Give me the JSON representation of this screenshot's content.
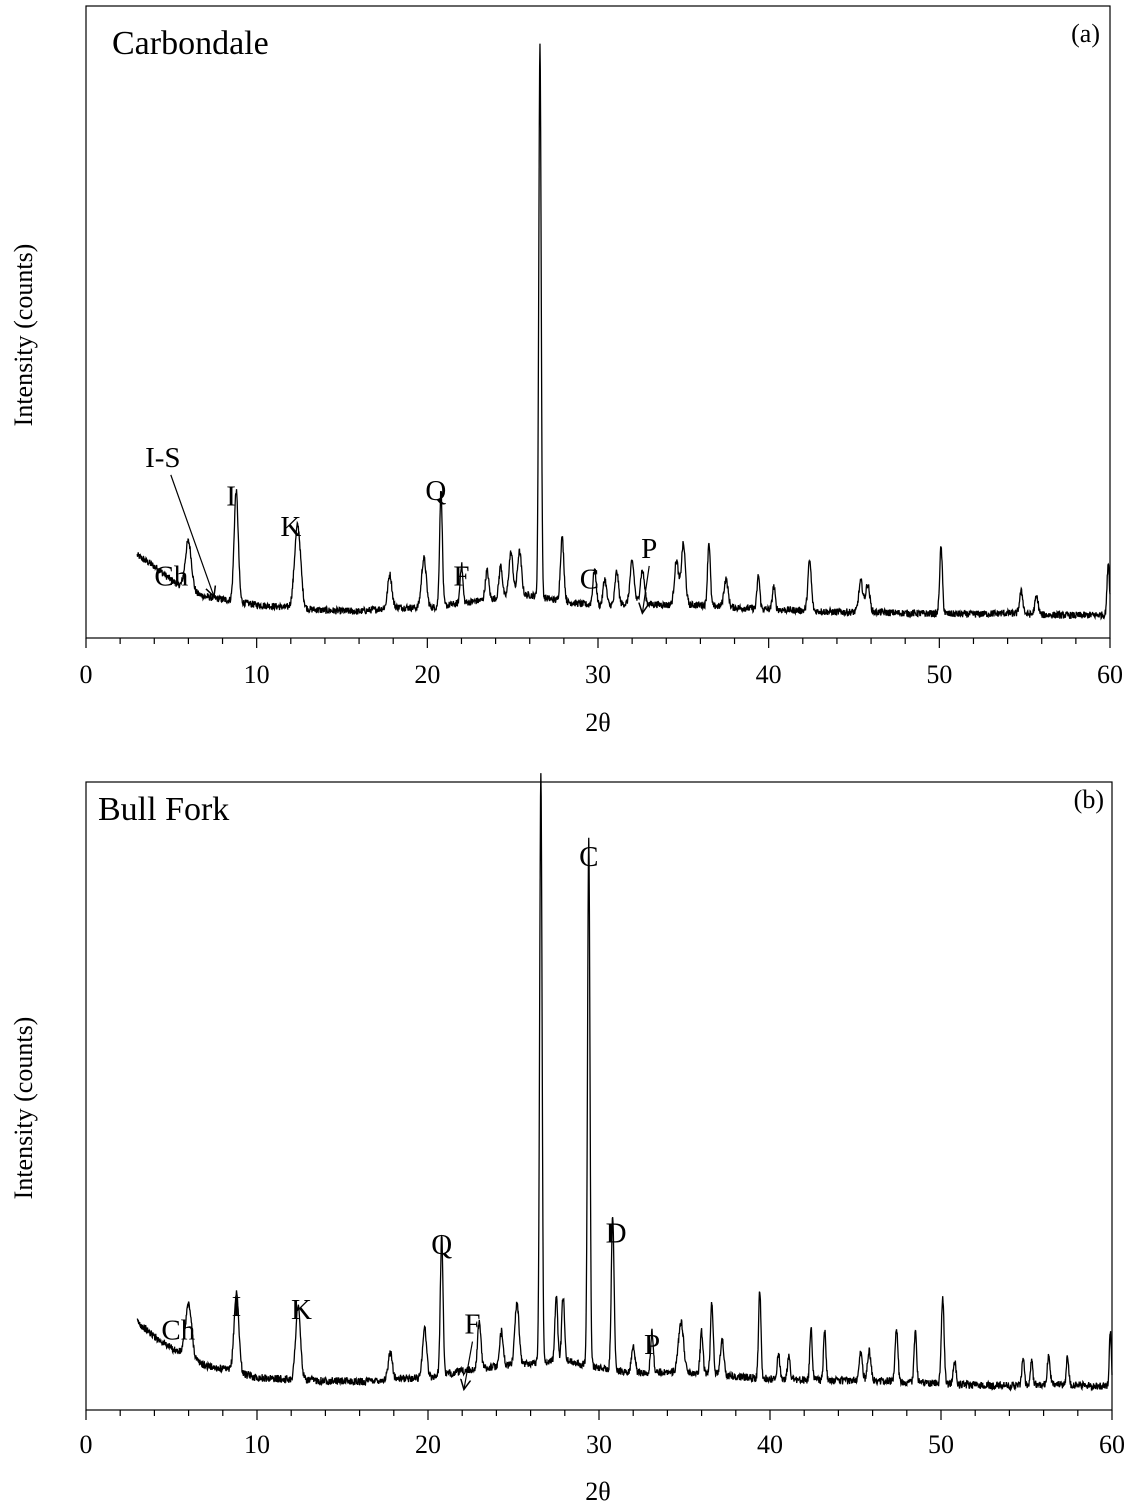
{
  "chart_data": [
    {
      "type": "line",
      "title": "Carbondale",
      "panel_label": "(a)",
      "xlabel": "2θ",
      "ylabel": "Intensity (counts)",
      "xlim": [
        0,
        60
      ],
      "x_ticks": [
        "0",
        "10",
        "20",
        "30",
        "40",
        "50",
        "60"
      ],
      "ylim": [
        0,
        100
      ],
      "y_ticks": [],
      "grid": false,
      "line_color": "#000000",
      "baseline": 3,
      "background": [
        [
          3,
          12
        ],
        [
          4,
          10
        ],
        [
          5,
          7.5
        ],
        [
          6,
          5.5
        ],
        [
          7,
          4.5
        ],
        [
          8,
          4
        ],
        [
          10,
          3
        ],
        [
          12,
          2.5
        ],
        [
          14,
          2
        ],
        [
          16,
          1.8
        ],
        [
          18,
          2.6
        ],
        [
          20,
          2.4
        ],
        [
          22,
          3.3
        ],
        [
          24,
          4.2
        ],
        [
          26,
          4.8
        ],
        [
          28,
          3.6
        ],
        [
          30,
          2.8
        ],
        [
          32,
          3.3
        ],
        [
          34,
          3
        ],
        [
          36,
          3
        ],
        [
          38,
          2.5
        ],
        [
          40,
          2.2
        ],
        [
          42,
          2
        ],
        [
          44,
          1.7
        ],
        [
          46,
          1.7
        ],
        [
          48,
          1.5
        ],
        [
          50,
          1.4
        ],
        [
          52,
          1.3
        ],
        [
          54,
          1.5
        ],
        [
          56,
          1.2
        ],
        [
          58,
          1.1
        ],
        [
          60,
          1.2
        ]
      ],
      "peaks": [
        {
          "x": 6.0,
          "y": 9,
          "w": 0.18
        },
        {
          "x": 8.8,
          "y": 20,
          "w": 0.12
        },
        {
          "x": 12.4,
          "y": 15,
          "w": 0.18
        },
        {
          "x": 17.8,
          "y": 6,
          "w": 0.12
        },
        {
          "x": 19.8,
          "y": 9,
          "w": 0.14
        },
        {
          "x": 20.8,
          "y": 21,
          "w": 0.08
        },
        {
          "x": 22.0,
          "y": 7,
          "w": 0.08
        },
        {
          "x": 23.5,
          "y": 5.2,
          "w": 0.1
        },
        {
          "x": 24.3,
          "y": 5.8,
          "w": 0.1
        },
        {
          "x": 24.9,
          "y": 8,
          "w": 0.12
        },
        {
          "x": 25.4,
          "y": 8,
          "w": 0.12
        },
        {
          "x": 26.6,
          "y": 100,
          "w": 0.07
        },
        {
          "x": 27.9,
          "y": 11.5,
          "w": 0.1
        },
        {
          "x": 29.8,
          "y": 6.5,
          "w": 0.1
        },
        {
          "x": 30.4,
          "y": 4.8,
          "w": 0.1
        },
        {
          "x": 31.1,
          "y": 6,
          "w": 0.1
        },
        {
          "x": 32.0,
          "y": 7.5,
          "w": 0.12
        },
        {
          "x": 32.6,
          "y": 6,
          "w": 0.12
        },
        {
          "x": 34.6,
          "y": 8,
          "w": 0.12
        },
        {
          "x": 35.0,
          "y": 11,
          "w": 0.12
        },
        {
          "x": 36.5,
          "y": 11.5,
          "w": 0.08
        },
        {
          "x": 37.5,
          "y": 5,
          "w": 0.12
        },
        {
          "x": 39.4,
          "y": 6,
          "w": 0.08
        },
        {
          "x": 40.3,
          "y": 4.2,
          "w": 0.08
        },
        {
          "x": 42.4,
          "y": 9,
          "w": 0.1
        },
        {
          "x": 45.4,
          "y": 5.5,
          "w": 0.12
        },
        {
          "x": 45.8,
          "y": 5,
          "w": 0.12
        },
        {
          "x": 50.1,
          "y": 12,
          "w": 0.08
        },
        {
          "x": 54.8,
          "y": 4,
          "w": 0.1
        },
        {
          "x": 55.7,
          "y": 3.2,
          "w": 0.1
        },
        {
          "x": 59.9,
          "y": 9.5,
          "w": 0.07
        }
      ],
      "annotations": [
        {
          "label": "Ch",
          "x": 5.0,
          "y": 9.5
        },
        {
          "label": "I-S",
          "x": 4.5,
          "y": 31,
          "arrow_to": [
            7.5,
            7.5
          ]
        },
        {
          "label": "I",
          "x": 8.5,
          "y": 24
        },
        {
          "label": "K",
          "x": 12.0,
          "y": 18.5
        },
        {
          "label": "Q",
          "x": 20.5,
          "y": 25
        },
        {
          "label": "F",
          "x": 22.0,
          "y": 9.5
        },
        {
          "label": "C",
          "x": 29.5,
          "y": 9
        },
        {
          "label": "P",
          "x": 33.0,
          "y": 14.5,
          "arrow_to": [
            32.6,
            4.5
          ]
        }
      ]
    },
    {
      "type": "line",
      "title": "Bull Fork",
      "panel_label": "(b)",
      "xlabel": "2θ",
      "ylabel": "Intensity (counts)",
      "xlim": [
        0,
        60
      ],
      "x_ticks": [
        "0",
        "10",
        "20",
        "30",
        "40",
        "50",
        "60"
      ],
      "ylim": [
        0,
        100
      ],
      "y_ticks": [],
      "grid": false,
      "line_color": "#000000",
      "baseline": 3,
      "background": [
        [
          3,
          12
        ],
        [
          4,
          9.5
        ],
        [
          5,
          7.5
        ],
        [
          6,
          6
        ],
        [
          7,
          4.5
        ],
        [
          8,
          4
        ],
        [
          10,
          2.5
        ],
        [
          12,
          2.2
        ],
        [
          14,
          2
        ],
        [
          16,
          1.8
        ],
        [
          18,
          2.3
        ],
        [
          20,
          2.5
        ],
        [
          22,
          3.6
        ],
        [
          24,
          4.4
        ],
        [
          26,
          5
        ],
        [
          28,
          5.5
        ],
        [
          30,
          4.2
        ],
        [
          32,
          3.3
        ],
        [
          34,
          3.5
        ],
        [
          36,
          3.3
        ],
        [
          38,
          2.7
        ],
        [
          40,
          2.3
        ],
        [
          42,
          2.1
        ],
        [
          44,
          2
        ],
        [
          46,
          2
        ],
        [
          48,
          1.8
        ],
        [
          50,
          1.5
        ],
        [
          52,
          1.2
        ],
        [
          54,
          1.1
        ],
        [
          56,
          1.4
        ],
        [
          58,
          1.2
        ],
        [
          60,
          1
        ]
      ],
      "peaks": [
        {
          "x": 6.0,
          "y": 9,
          "w": 0.18
        },
        {
          "x": 8.8,
          "y": 13.5,
          "w": 0.14
        },
        {
          "x": 12.4,
          "y": 12.5,
          "w": 0.14
        },
        {
          "x": 17.8,
          "y": 4.5,
          "w": 0.12
        },
        {
          "x": 19.8,
          "y": 8.5,
          "w": 0.12
        },
        {
          "x": 20.8,
          "y": 23.5,
          "w": 0.08
        },
        {
          "x": 23.0,
          "y": 8,
          "w": 0.1
        },
        {
          "x": 24.3,
          "y": 6,
          "w": 0.1
        },
        {
          "x": 25.2,
          "y": 10.5,
          "w": 0.12
        },
        {
          "x": 26.6,
          "y": 100,
          "w": 0.07
        },
        {
          "x": 27.5,
          "y": 11,
          "w": 0.08
        },
        {
          "x": 27.9,
          "y": 11,
          "w": 0.08
        },
        {
          "x": 29.4,
          "y": 90,
          "w": 0.07
        },
        {
          "x": 30.8,
          "y": 26,
          "w": 0.08
        },
        {
          "x": 32.0,
          "y": 4.5,
          "w": 0.1
        },
        {
          "x": 33.1,
          "y": 6.8,
          "w": 0.08
        },
        {
          "x": 34.8,
          "y": 8.5,
          "w": 0.15
        },
        {
          "x": 36.0,
          "y": 7,
          "w": 0.08
        },
        {
          "x": 36.6,
          "y": 12,
          "w": 0.08
        },
        {
          "x": 37.2,
          "y": 6,
          "w": 0.1
        },
        {
          "x": 39.4,
          "y": 15,
          "w": 0.07
        },
        {
          "x": 40.5,
          "y": 4.2,
          "w": 0.08
        },
        {
          "x": 41.1,
          "y": 4,
          "w": 0.08
        },
        {
          "x": 42.4,
          "y": 9,
          "w": 0.07
        },
        {
          "x": 43.2,
          "y": 8.5,
          "w": 0.07
        },
        {
          "x": 45.3,
          "y": 4.8,
          "w": 0.1
        },
        {
          "x": 45.8,
          "y": 5,
          "w": 0.1
        },
        {
          "x": 47.4,
          "y": 9,
          "w": 0.08
        },
        {
          "x": 48.5,
          "y": 8.8,
          "w": 0.07
        },
        {
          "x": 50.1,
          "y": 14.5,
          "w": 0.08
        },
        {
          "x": 50.8,
          "y": 4,
          "w": 0.08
        },
        {
          "x": 54.8,
          "y": 4.5,
          "w": 0.07
        },
        {
          "x": 55.3,
          "y": 4,
          "w": 0.07
        },
        {
          "x": 56.3,
          "y": 4.8,
          "w": 0.08
        },
        {
          "x": 57.4,
          "y": 5,
          "w": 0.07
        },
        {
          "x": 59.9,
          "y": 9.5,
          "w": 0.06
        }
      ],
      "annotations": [
        {
          "label": "Ch",
          "x": 5.4,
          "y": 12
        },
        {
          "label": "I",
          "x": 8.8,
          "y": 16
        },
        {
          "label": "K",
          "x": 12.6,
          "y": 15.5
        },
        {
          "label": "Q",
          "x": 20.8,
          "y": 26.5
        },
        {
          "label": "F",
          "x": 22.6,
          "y": 13,
          "arrow_to": [
            22.1,
            3.5
          ]
        },
        {
          "label": "C",
          "x": 29.4,
          "y": 92.5
        },
        {
          "label": "D",
          "x": 31.0,
          "y": 28.5
        },
        {
          "label": "P",
          "x": 33.1,
          "y": 9.5
        }
      ]
    }
  ]
}
